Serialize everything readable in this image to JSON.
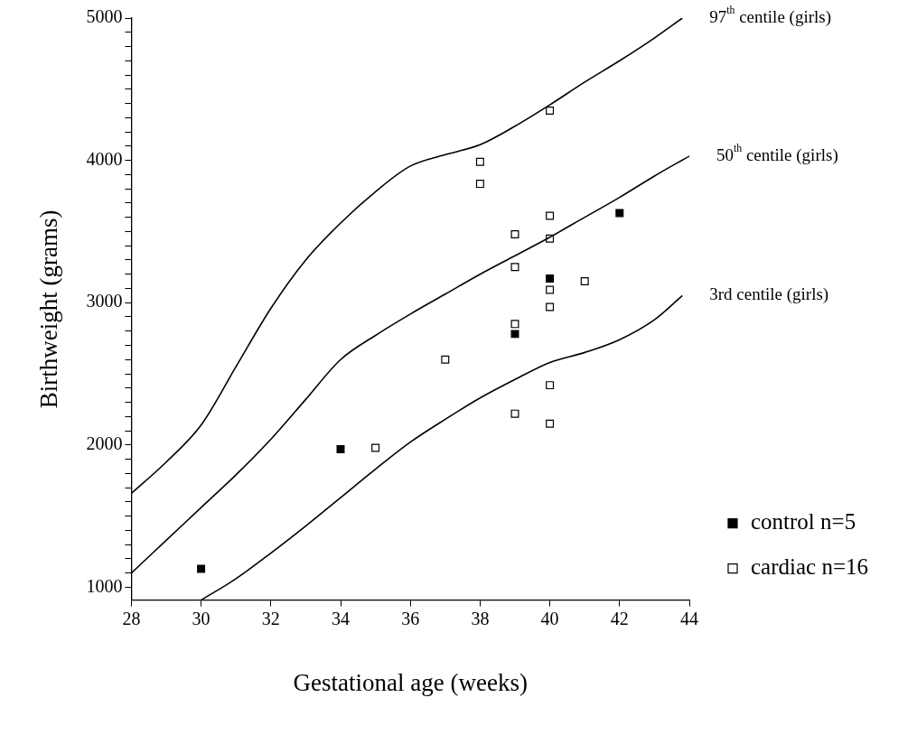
{
  "chart_data": {
    "type": "scatter",
    "xlabel": "Gestational age (weeks)",
    "ylabel": "Birthweight (grams)",
    "xlim": [
      28,
      44
    ],
    "xticks": [
      28,
      30,
      32,
      34,
      36,
      38,
      40,
      42,
      44
    ],
    "ylim": [
      910,
      5000
    ],
    "yticks": [
      1000,
      {
        "value": 1100,
        "label": null
      },
      {
        "value": 1200,
        "label": null
      },
      {
        "value": 1300,
        "label": null
      },
      {
        "value": 1400,
        "label": null
      },
      {
        "value": 1500,
        "label": null
      },
      {
        "value": 1600,
        "label": null
      },
      {
        "value": 1700,
        "label": null
      },
      {
        "value": 1800,
        "label": null
      },
      {
        "value": 1900,
        "label": null
      },
      2000,
      {
        "value": 2100,
        "label": null
      },
      {
        "value": 2200,
        "label": null
      },
      {
        "value": 2300,
        "label": null
      },
      {
        "value": 2400,
        "label": null
      },
      {
        "value": 2500,
        "label": null
      },
      {
        "value": 2600,
        "label": null
      },
      {
        "value": 2700,
        "label": null
      },
      {
        "value": 2800,
        "label": null
      },
      {
        "value": 2900,
        "label": null
      },
      3000,
      {
        "value": 3100,
        "label": null
      },
      {
        "value": 3200,
        "label": null
      },
      {
        "value": 3300,
        "label": null
      },
      {
        "value": 3400,
        "label": null
      },
      {
        "value": 3500,
        "label": null
      },
      {
        "value": 3600,
        "label": null
      },
      {
        "value": 3700,
        "label": null
      },
      {
        "value": 3800,
        "label": null
      },
      {
        "value": 3900,
        "label": null
      },
      4000,
      {
        "value": 4100,
        "label": null
      },
      {
        "value": 4200,
        "label": null
      },
      {
        "value": 4300,
        "label": null
      },
      {
        "value": 4400,
        "label": null
      },
      {
        "value": 4500,
        "label": null
      },
      {
        "value": 4600,
        "label": null
      },
      {
        "value": 4700,
        "label": null
      },
      {
        "value": 4800,
        "label": null
      },
      {
        "value": 4900,
        "label": null
      },
      5000
    ],
    "grid": false,
    "legend": "bottom right",
    "marker": "square",
    "series": [
      {
        "name": "97$^{th}$ centile (girls)",
        "type": "line",
        "color": "#000000",
        "marker": "none",
        "line_style": "solid",
        "x": [
          28,
          29,
          30,
          31,
          32,
          33,
          34,
          35,
          36,
          37,
          38,
          39,
          40,
          41,
          42,
          43,
          43.8
        ],
        "values": [
          1660,
          1880,
          2140,
          2550,
          2960,
          3300,
          3560,
          3780,
          3960,
          4040,
          4110,
          4240,
          4390,
          4550,
          4700,
          4860,
          5000
        ]
      },
      {
        "name": "50$^{th}$ centile (girls)",
        "type": "line",
        "color": "#000000",
        "marker": "none",
        "line_style": "solid",
        "x": [
          28,
          29,
          30,
          31,
          32,
          33,
          34,
          35,
          36,
          37,
          38,
          39,
          40,
          41,
          42,
          43,
          44
        ],
        "values": [
          1100,
          1330,
          1560,
          1790,
          2040,
          2320,
          2600,
          2770,
          2920,
          3060,
          3200,
          3330,
          3460,
          3600,
          3740,
          3890,
          4030
        ]
      },
      {
        "name": "3rd centile (girls)",
        "type": "line",
        "color": "#000000",
        "marker": "none",
        "line_style": "solid",
        "x": [
          30,
          31,
          32,
          33,
          34,
          35,
          36,
          37,
          38,
          39,
          40,
          41,
          42,
          43,
          43.8
        ],
        "values": [
          910,
          1060,
          1240,
          1430,
          1630,
          1830,
          2020,
          2180,
          2330,
          2460,
          2580,
          2650,
          2740,
          2880,
          3050
        ]
      },
      {
        "name": "control n=5",
        "color": "#000000",
        "x": [
          30,
          34,
          39,
          40,
          42
        ],
        "values": [
          1130,
          1970,
          2780,
          3170,
          3630
        ]
      },
      {
        "name": "cardiac n=16",
        "color": "#ffffff",
        "x": [
          40,
          38,
          38,
          39,
          40,
          40,
          39,
          40,
          41,
          40,
          39,
          37,
          40,
          39,
          40,
          35
        ],
        "values": [
          4350,
          3990,
          3835,
          3480,
          3610,
          3450,
          3250,
          3090,
          3150,
          2970,
          2850,
          2600,
          2420,
          2220,
          2150,
          1980
        ]
      }
    ]
  }
}
